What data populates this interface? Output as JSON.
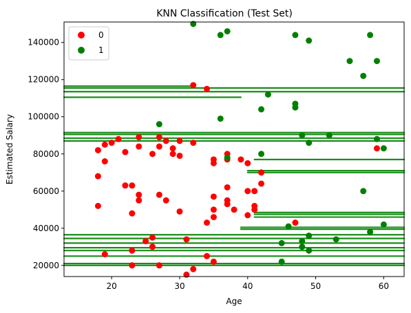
{
  "chart_data": {
    "type": "scatter",
    "title": "KNN Classification (Test Set)",
    "xlabel": "Age",
    "ylabel": "Estimated Salary",
    "xlim": [
      13,
      63
    ],
    "ylim": [
      14000,
      151000
    ],
    "xticks": [
      20,
      30,
      40,
      50,
      60
    ],
    "yticks": [
      20000,
      40000,
      60000,
      80000,
      100000,
      120000,
      140000
    ],
    "legend_position": "top-left",
    "grid": false,
    "series": [
      {
        "name": "0",
        "color": "#ff0000",
        "points": [
          [
            18,
            82000
          ],
          [
            19,
            85000
          ],
          [
            20,
            86000
          ],
          [
            21,
            88000
          ],
          [
            19,
            76000
          ],
          [
            18,
            68000
          ],
          [
            18,
            52000
          ],
          [
            22,
            81000
          ],
          [
            22,
            63000
          ],
          [
            23,
            63000
          ],
          [
            23,
            48000
          ],
          [
            24,
            58000
          ],
          [
            24,
            55000
          ],
          [
            24,
            84000
          ],
          [
            24,
            89000
          ],
          [
            26,
            80000
          ],
          [
            27,
            84000
          ],
          [
            27,
            89000
          ],
          [
            28,
            87000
          ],
          [
            29,
            83000
          ],
          [
            29,
            80000
          ],
          [
            30,
            79000
          ],
          [
            30,
            87000
          ],
          [
            27,
            58000
          ],
          [
            28,
            55000
          ],
          [
            30,
            49000
          ],
          [
            26,
            35000
          ],
          [
            25,
            33000
          ],
          [
            26,
            30000
          ],
          [
            19,
            26000
          ],
          [
            23,
            28000
          ],
          [
            23,
            20000
          ],
          [
            27,
            20000
          ],
          [
            31,
            34000
          ],
          [
            31,
            15000
          ],
          [
            32,
            18000
          ],
          [
            32,
            86000
          ],
          [
            32,
            117000
          ],
          [
            34,
            115000
          ],
          [
            34,
            43000
          ],
          [
            34,
            25000
          ],
          [
            35,
            22000
          ],
          [
            35,
            77000
          ],
          [
            35,
            75000
          ],
          [
            35,
            57000
          ],
          [
            35,
            50000
          ],
          [
            35,
            46000
          ],
          [
            37,
            80000
          ],
          [
            37,
            77000
          ],
          [
            37,
            62000
          ],
          [
            37,
            55000
          ],
          [
            37,
            53000
          ],
          [
            38,
            50000
          ],
          [
            39,
            77000
          ],
          [
            40,
            75000
          ],
          [
            40,
            60000
          ],
          [
            40,
            47000
          ],
          [
            41,
            60000
          ],
          [
            41,
            52000
          ],
          [
            41,
            50000
          ],
          [
            42,
            64000
          ],
          [
            42,
            70000
          ],
          [
            47,
            43000
          ],
          [
            59,
            83000
          ]
        ]
      },
      {
        "name": "1",
        "color": "#008000",
        "points": [
          [
            32,
            150000
          ],
          [
            36,
            144000
          ],
          [
            37,
            146000
          ],
          [
            47,
            144000
          ],
          [
            49,
            141000
          ],
          [
            58,
            144000
          ],
          [
            55,
            130000
          ],
          [
            59,
            130000
          ],
          [
            57,
            122000
          ],
          [
            43,
            112000
          ],
          [
            42,
            104000
          ],
          [
            47,
            107000
          ],
          [
            47,
            105000
          ],
          [
            36,
            99000
          ],
          [
            27,
            96000
          ],
          [
            48,
            90000
          ],
          [
            52,
            90000
          ],
          [
            59,
            88000
          ],
          [
            49,
            86000
          ],
          [
            60,
            83000
          ],
          [
            42,
            80000
          ],
          [
            37,
            78000
          ],
          [
            57,
            60000
          ],
          [
            60,
            42000
          ],
          [
            46,
            41000
          ],
          [
            45,
            32000
          ],
          [
            48,
            33000
          ],
          [
            48,
            30000
          ],
          [
            49,
            36000
          ],
          [
            49,
            28000
          ],
          [
            53,
            34000
          ],
          [
            58,
            38000
          ],
          [
            45,
            22000
          ]
        ]
      }
    ],
    "stripes": [
      {
        "color": "#008000",
        "x0": 13,
        "x1": 63,
        "y": 21000
      },
      {
        "color": "#008000",
        "x0": 13,
        "x1": 63,
        "y": 20000
      },
      {
        "color": "#008000",
        "x0": 13,
        "x1": 63,
        "y": 25000
      },
      {
        "color": "#008000",
        "x0": 13,
        "x1": 63,
        "y": 28000
      },
      {
        "color": "#008000",
        "x0": 13,
        "x1": 63,
        "y": 29500
      },
      {
        "color": "#008000",
        "x0": 13,
        "x1": 63,
        "y": 32000
      },
      {
        "color": "#008000",
        "x0": 13,
        "x1": 63,
        "y": 34500
      },
      {
        "color": "#008000",
        "x0": 13,
        "x1": 63,
        "y": 36500
      },
      {
        "color": "#008000",
        "x0": 39,
        "x1": 63,
        "y": 39500
      },
      {
        "color": "#008000",
        "x0": 39,
        "x1": 63,
        "y": 40500
      },
      {
        "color": "#008000",
        "x0": 41,
        "x1": 63,
        "y": 46000
      },
      {
        "color": "#008000",
        "x0": 41,
        "x1": 63,
        "y": 47500
      },
      {
        "color": "#008000",
        "x0": 41,
        "x1": 63,
        "y": 48500
      },
      {
        "color": "#008000",
        "x0": 40,
        "x1": 63,
        "y": 70000
      },
      {
        "color": "#008000",
        "x0": 40,
        "x1": 63,
        "y": 71000
      },
      {
        "color": "#008000",
        "x0": 41,
        "x1": 63,
        "y": 77000
      },
      {
        "color": "#008000",
        "x0": 13,
        "x1": 63,
        "y": 87000
      },
      {
        "color": "#008000",
        "x0": 13,
        "x1": 63,
        "y": 88500
      },
      {
        "color": "#008000",
        "x0": 13,
        "x1": 63,
        "y": 90500
      },
      {
        "color": "#008000",
        "x0": 13,
        "x1": 63,
        "y": 91500
      },
      {
        "color": "#008000",
        "x0": 13,
        "x1": 39,
        "y": 110500
      },
      {
        "color": "#008000",
        "x0": 13,
        "x1": 63,
        "y": 113500
      },
      {
        "color": "#008000",
        "x0": 13,
        "x1": 63,
        "y": 115500
      },
      {
        "color": "#008000",
        "x0": 13,
        "x1": 32,
        "y": 116500
      }
    ]
  }
}
